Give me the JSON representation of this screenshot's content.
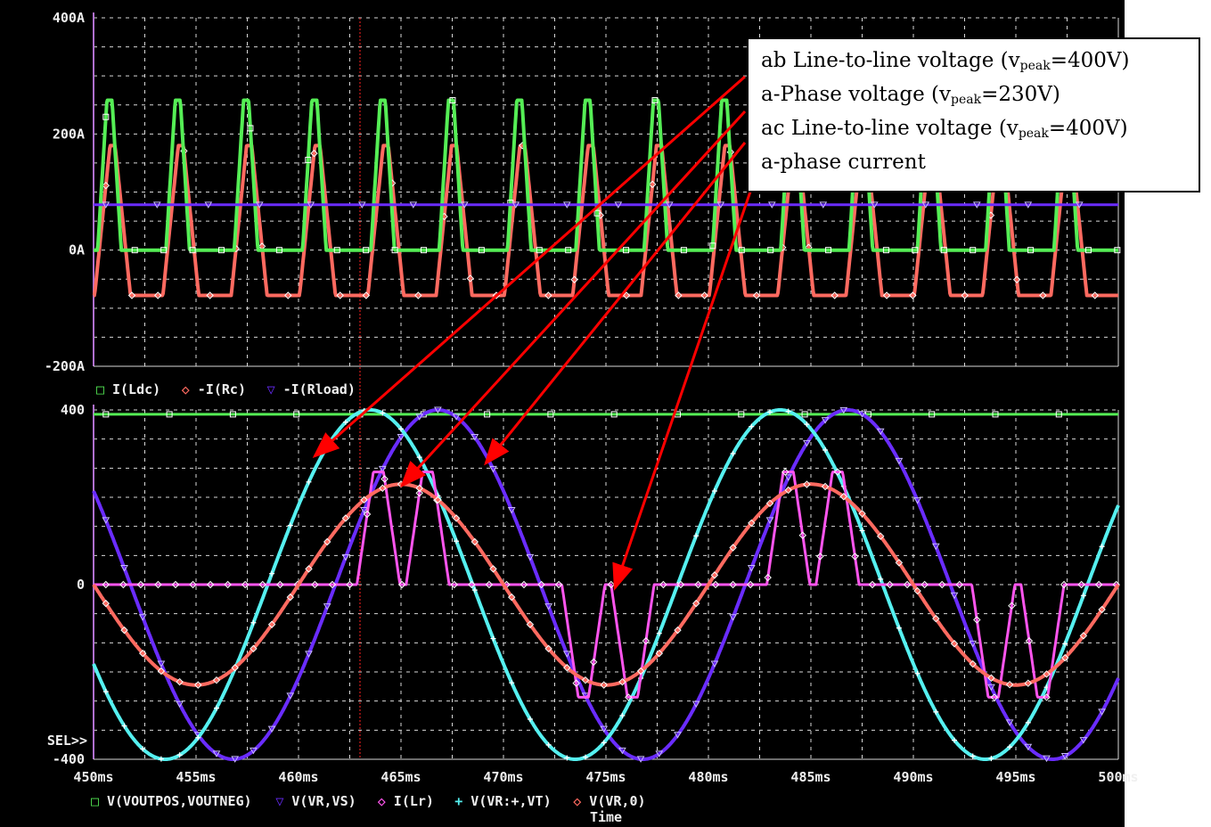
{
  "colors": {
    "background": "#000000",
    "grid": "#d8d8d8",
    "cursor": "#ff2020",
    "arrow": "#ff0000",
    "green": "#55ee55",
    "salmon": "#ff6a60",
    "blue": "#6a2cff",
    "magenta": "#ff55ee",
    "cyan": "#55f0f0",
    "frame": "#b070d0"
  },
  "annotations": {
    "lines": [
      {
        "pre": "ab Line-to-line voltage (v",
        "sub": "peak",
        "post": "=400V)"
      },
      {
        "pre": "a-Phase voltage (v",
        "sub": "peak",
        "post": "=230V)"
      },
      {
        "pre": "ac Line-to-line voltage (v",
        "sub": "peak",
        "post": "=400V)"
      },
      {
        "pre": "a-phase current",
        "sub": "",
        "post": ""
      }
    ]
  },
  "chart_data": [
    {
      "type": "line",
      "title": "",
      "xlabel": "",
      "ylabel": "",
      "xlim": [
        450,
        500
      ],
      "ylim": [
        -200,
        400
      ],
      "y_tick_labels": [
        "400A",
        "200A",
        "0A",
        "-200A"
      ],
      "grid": true,
      "legend": [
        {
          "marker": "□",
          "label": "I(Ldc)",
          "color_key": "green"
        },
        {
          "marker": "◇",
          "label": "-I(Rc)",
          "color_key": "salmon"
        },
        {
          "marker": "▽",
          "label": "-I(Rload)",
          "color_key": "blue"
        }
      ],
      "series": [
        {
          "name": "I(Ldc)",
          "color_key": "green",
          "pulse_period_ms": 3.333,
          "peak": 258,
          "base": 0
        },
        {
          "name": "-I(Rc)",
          "color_key": "salmon",
          "pulse_period_ms": 3.333,
          "peak": 180,
          "base": -78
        },
        {
          "name": "-I(Rload)",
          "color_key": "blue",
          "dc_value": 78
        }
      ]
    },
    {
      "type": "line",
      "title": "",
      "xlabel": "Time",
      "ylabel": "",
      "xlim": [
        450,
        500
      ],
      "ylim": [
        -400,
        400
      ],
      "x_tick_labels": [
        "450ms",
        "455ms",
        "460ms",
        "465ms",
        "470ms",
        "475ms",
        "480ms",
        "485ms",
        "490ms",
        "495ms",
        "500ms"
      ],
      "y_tick_labels": [
        "400",
        "0",
        "-400"
      ],
      "grid": true,
      "selection_marker": "SEL>>",
      "cursor_x_ms": 463,
      "legend": [
        {
          "marker": "□",
          "label": "V(VOUTPOS,VOUTNEG)",
          "color_key": "green"
        },
        {
          "marker": "▽",
          "label": "V(VR,VS)",
          "color_key": "blue"
        },
        {
          "marker": "◇",
          "label": "I(Lr)",
          "color_key": "magenta"
        },
        {
          "marker": "+",
          "label": "V(VR:+,VT)",
          "color_key": "cyan"
        },
        {
          "marker": "◇",
          "label": "V(VR,0)",
          "color_key": "salmon"
        }
      ],
      "series": [
        {
          "name": "V(VOUTPOS,VOUTNEG)",
          "color_key": "green",
          "dc_value": 390
        },
        {
          "name": "V(VR,VS)",
          "color_key": "blue",
          "amplitude": 400,
          "peak_at_ms": 466.8,
          "period_ms": 20
        },
        {
          "name": "V(VR:+,VT)",
          "color_key": "cyan",
          "amplitude": 400,
          "peak_at_ms": 463.5,
          "period_ms": 20
        },
        {
          "name": "V(VR,0)",
          "color_key": "salmon",
          "amplitude": 230,
          "peak_at_ms": 465.0,
          "period_ms": 20
        },
        {
          "name": "I(Lr)",
          "color_key": "magenta",
          "pulse_peak": 258,
          "pulse_centers_ms": [
            463.9,
            466.3,
            473.9,
            476.3,
            483.9,
            486.3,
            493.9,
            496.3
          ],
          "pulse_sign": [
            1,
            1,
            -1,
            -1,
            1,
            1,
            -1,
            -1
          ]
        }
      ]
    }
  ]
}
